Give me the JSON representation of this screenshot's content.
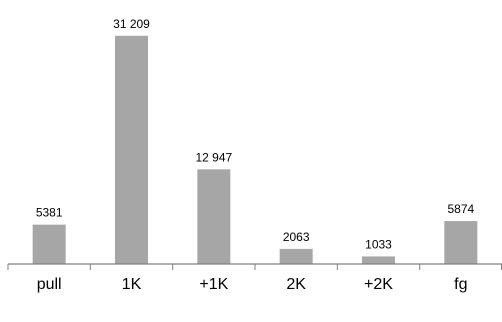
{
  "chart_data": {
    "type": "bar",
    "categories": [
      "pull",
      "1K",
      "+1K",
      "2K",
      "+2K",
      "fg"
    ],
    "values": [
      5381,
      31209,
      12947,
      2063,
      1033,
      5874
    ],
    "data_labels": [
      "5381",
      "31 209",
      "12 947",
      "2063",
      "1033",
      "5874"
    ],
    "title": "",
    "xlabel": "",
    "ylabel": "",
    "ylim": [
      0,
      32000
    ],
    "grid": false,
    "legend": "none",
    "bar_color": "#a6a6a6",
    "axis_color": "#7f7f7f"
  }
}
